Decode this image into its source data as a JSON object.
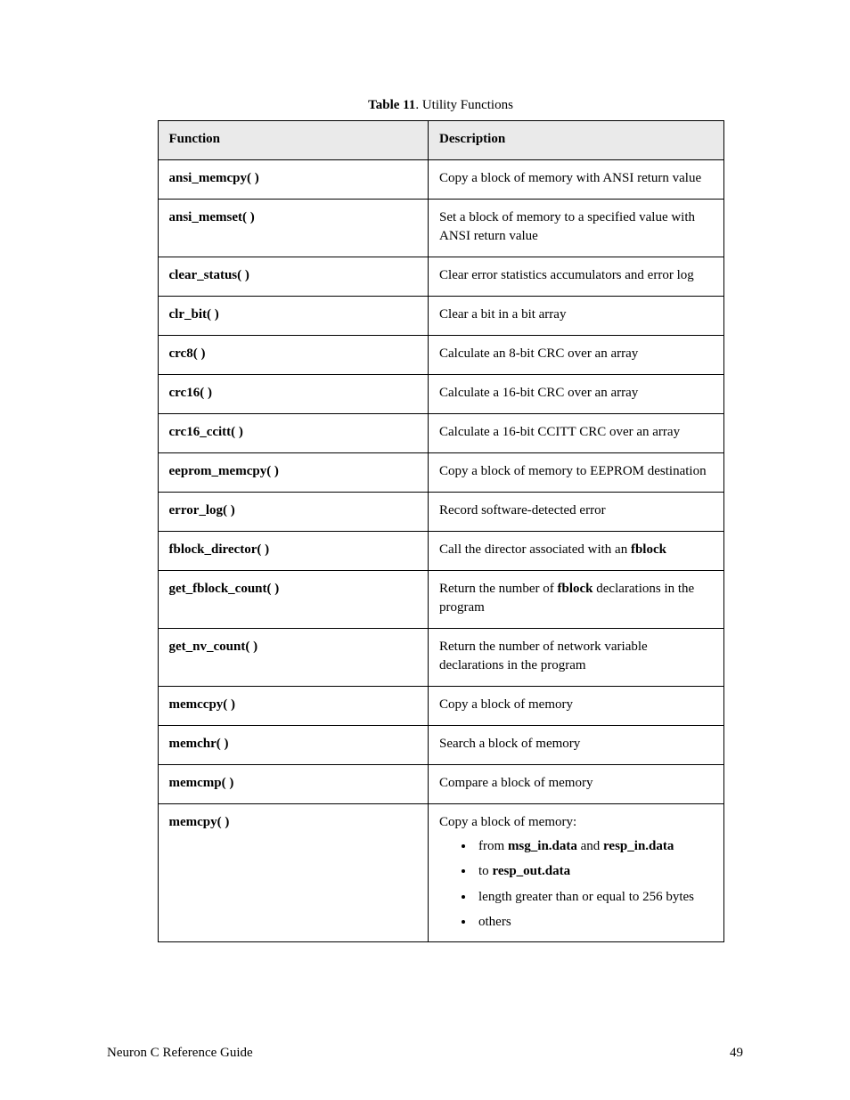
{
  "caption": {
    "label": "Table 11",
    "sep": ". ",
    "text": "Utility Functions"
  },
  "table": {
    "header": {
      "func": "Function",
      "desc": "Description"
    },
    "rows": [
      {
        "func": "ansi_memcpy( )",
        "desc": "Copy a block of memory with ANSI return value"
      },
      {
        "func": "ansi_memset( )",
        "desc": "Set a block of memory to a specified value with ANSI return value"
      },
      {
        "func": "clear_status( )",
        "desc": "Clear error statistics accumulators and error log"
      },
      {
        "func": "clr_bit( )",
        "desc": "Clear a bit in a bit array"
      },
      {
        "func": "crc8( )",
        "desc": "Calculate an 8-bit CRC over an array"
      },
      {
        "func": "crc16( )",
        "desc": "Calculate a 16-bit CRC over an array"
      },
      {
        "func": "crc16_ccitt( )",
        "desc": "Calculate a 16-bit CCITT CRC over an array"
      },
      {
        "func": "eeprom_memcpy( )",
        "desc": "Copy a block of memory to EEPROM destination"
      },
      {
        "func": "error_log( )",
        "desc": "Record software-detected error"
      },
      {
        "func": "fblock_director( )",
        "desc_pre": "Call the director associated with an ",
        "desc_bold": "fblock",
        "desc_post": ""
      },
      {
        "func": "get_fblock_count( )",
        "desc_pre": "Return the number of ",
        "desc_bold": "fblock",
        "desc_post": " declarations in the program"
      },
      {
        "func": "get_nv_count( )",
        "desc": "Return the number of network variable declarations in the program"
      },
      {
        "func": "memccpy( )",
        "desc": "Copy a block of memory"
      },
      {
        "func": "memchr( )",
        "desc": "Search a block of memory"
      },
      {
        "func": "memcmp( )",
        "desc": "Compare a block of memory"
      }
    ],
    "last_row": {
      "func": "memcpy( )",
      "intro": "Copy a block of memory:",
      "bullets": [
        {
          "pre": "from ",
          "b1": "msg_in.data",
          "mid": " and ",
          "b2": "resp_in.data",
          "post": ""
        },
        {
          "pre": "to ",
          "b1": "resp_out.data",
          "mid": "",
          "b2": "",
          "post": ""
        },
        {
          "plain": "length greater than or equal to 256 bytes"
        },
        {
          "plain": "others"
        }
      ]
    }
  },
  "footer": {
    "title": "Neuron C Reference Guide",
    "page": "49"
  }
}
